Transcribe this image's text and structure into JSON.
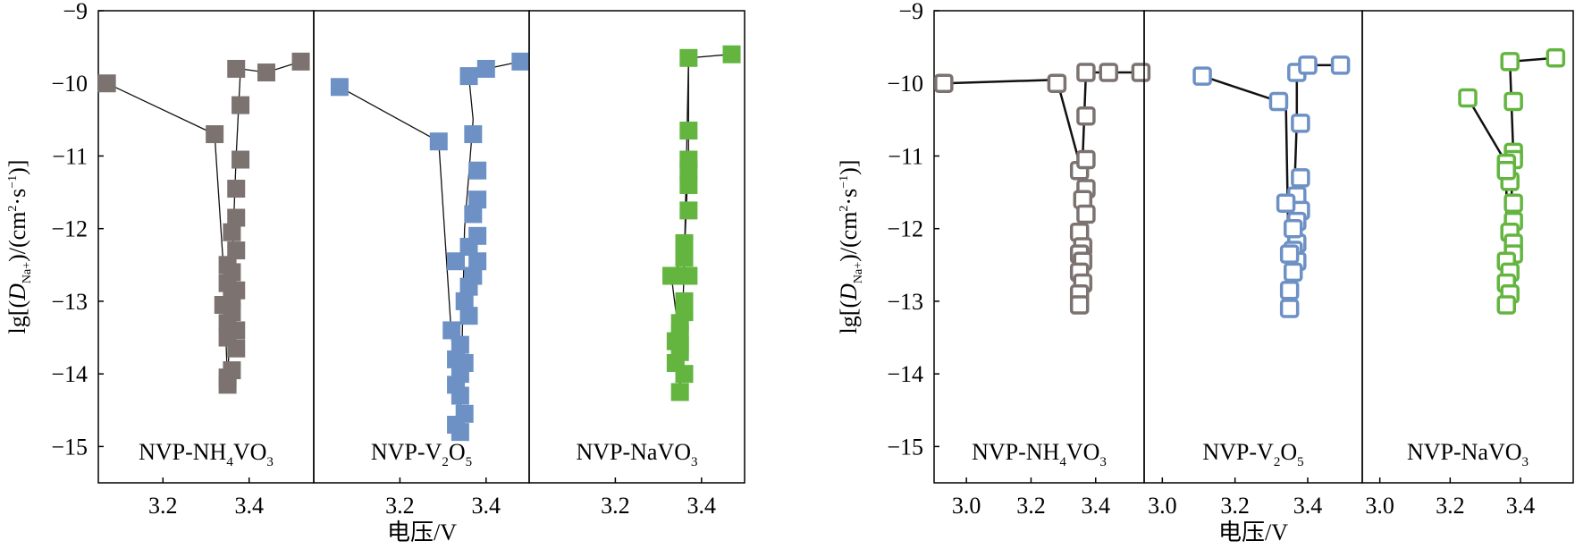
{
  "chart_data": [
    {
      "type": "scatter",
      "marker_style": "filled-square",
      "ylabel": "lg[(D_Na+)/(cm²·s⁻¹)]",
      "xlabel": "电压/V",
      "ylim": [
        -15.5,
        -9
      ],
      "yticks": [
        -9,
        -10,
        -11,
        -12,
        -13,
        -14,
        -15
      ],
      "panels": [
        {
          "label": "NVP-NH4VO3",
          "label_text": "NVP-NH",
          "label_sub1": "4",
          "label_mid": "VO",
          "label_sub2": "3",
          "color": "#7c7270",
          "xlim": [
            3.05,
            3.55
          ],
          "xticks": [
            3.2,
            3.4
          ],
          "x": [
            3.07,
            3.32,
            3.37,
            3.38,
            3.38,
            3.37,
            3.37,
            3.36,
            3.37,
            3.35,
            3.36,
            3.35,
            3.37,
            3.36,
            3.34,
            3.36,
            3.35,
            3.37,
            3.35,
            3.37,
            3.36,
            3.35,
            3.35,
            3.44,
            3.52
          ],
          "y": [
            -10.0,
            -10.7,
            -9.8,
            -10.3,
            -11.05,
            -11.45,
            -11.85,
            -12.05,
            -12.3,
            -12.5,
            -12.6,
            -12.75,
            -12.85,
            -12.95,
            -13.05,
            -13.15,
            -13.3,
            -13.4,
            -13.5,
            -13.65,
            -13.95,
            -14.05,
            -14.15,
            -9.85,
            -9.7
          ],
          "line": [
            [
              3.07,
              -10.0
            ],
            [
              3.32,
              -10.7
            ],
            [
              3.34,
              -12.5
            ],
            [
              3.35,
              -14.15
            ],
            [
              3.37,
              -11.0
            ],
            [
              3.38,
              -9.8
            ],
            [
              3.44,
              -9.85
            ],
            [
              3.52,
              -9.7
            ]
          ]
        },
        {
          "label": "NVP-V2O5",
          "label_text": "NVP-V",
          "label_sub1": "2",
          "label_mid": "O",
          "label_sub2": "5",
          "color": "#6d91c5",
          "xlim": [
            3.0,
            3.5
          ],
          "xticks": [
            3.2,
            3.4
          ],
          "x": [
            3.06,
            3.29,
            3.36,
            3.37,
            3.38,
            3.38,
            3.37,
            3.38,
            3.36,
            3.38,
            3.37,
            3.36,
            3.33,
            3.35,
            3.36,
            3.32,
            3.34,
            3.33,
            3.35,
            3.34,
            3.33,
            3.34,
            3.35,
            3.33,
            3.34,
            3.4,
            3.48
          ],
          "y": [
            -10.05,
            -10.8,
            -9.9,
            -10.7,
            -11.2,
            -11.6,
            -11.8,
            -12.1,
            -12.25,
            -12.45,
            -12.65,
            -12.8,
            -12.45,
            -13.0,
            -13.2,
            -13.4,
            -13.6,
            -13.8,
            -13.85,
            -14.0,
            -14.15,
            -14.3,
            -14.55,
            -14.7,
            -14.8,
            -9.8,
            -9.7
          ],
          "line": [
            [
              3.06,
              -10.05
            ],
            [
              3.29,
              -10.8
            ],
            [
              3.32,
              -13.5
            ],
            [
              3.34,
              -14.8
            ],
            [
              3.35,
              -12.0
            ],
            [
              3.37,
              -10.5
            ],
            [
              3.36,
              -9.9
            ],
            [
              3.4,
              -9.8
            ],
            [
              3.48,
              -9.7
            ]
          ]
        },
        {
          "label": "NVP-NaVO3",
          "label_text": "NVP-NaVO",
          "label_sub1": "",
          "label_mid": "",
          "label_sub2": "3",
          "color": "#63b540",
          "xlim": [
            3.0,
            3.5
          ],
          "xticks": [
            3.2,
            3.4
          ],
          "x": [
            3.37,
            3.37,
            3.37,
            3.37,
            3.37,
            3.37,
            3.36,
            3.36,
            3.33,
            3.37,
            3.36,
            3.36,
            3.35,
            3.35,
            3.34,
            3.35,
            3.34,
            3.36,
            3.35,
            3.35,
            3.47
          ],
          "y": [
            -9.65,
            -10.65,
            -11.05,
            -11.2,
            -11.4,
            -11.75,
            -12.2,
            -12.4,
            -12.65,
            -12.65,
            -13.0,
            -13.15,
            -13.3,
            -13.45,
            -13.55,
            -13.7,
            -13.85,
            -14.0,
            -13.6,
            -14.25,
            -9.6
          ],
          "line": [
            [
              3.37,
              -9.65
            ],
            [
              3.37,
              -11.0
            ],
            [
              3.36,
              -12.4
            ],
            [
              3.33,
              -12.65
            ],
            [
              3.35,
              -13.6
            ],
            [
              3.35,
              -14.25
            ],
            [
              3.36,
              -12.5
            ],
            [
              3.37,
              -9.65
            ],
            [
              3.47,
              -9.6
            ]
          ]
        }
      ]
    },
    {
      "type": "scatter",
      "marker_style": "outlined-square",
      "ylabel": "lg[(D_Na+)/(cm²·s⁻¹)]",
      "xlabel": "电压/V",
      "ylim": [
        -15.5,
        -9
      ],
      "yticks": [
        -9,
        -10,
        -11,
        -12,
        -13,
        -14,
        -15
      ],
      "panels": [
        {
          "label": "NVP-NH4VO3",
          "label_text": "NVP-NH",
          "label_sub1": "4",
          "label_mid": "VO",
          "label_sub2": "3",
          "color": "#7c7270",
          "xlim": [
            2.9,
            3.55
          ],
          "xticks": [
            3.0,
            3.2,
            3.4
          ],
          "x": [
            2.93,
            3.28,
            3.37,
            3.37,
            3.35,
            3.37,
            3.37,
            3.36,
            3.37,
            3.35,
            3.36,
            3.35,
            3.36,
            3.35,
            3.36,
            3.35,
            3.35,
            3.44,
            3.54
          ],
          "y": [
            -10.0,
            -10.0,
            -9.85,
            -10.45,
            -11.2,
            -11.05,
            -11.45,
            -11.6,
            -11.8,
            -12.05,
            -12.25,
            -12.35,
            -12.45,
            -12.6,
            -12.75,
            -12.9,
            -13.05,
            -9.85,
            -9.85
          ],
          "line": [
            [
              2.93,
              -10.0
            ],
            [
              3.28,
              -9.95
            ],
            [
              3.35,
              -11.1
            ],
            [
              3.36,
              -11.0
            ],
            [
              3.37,
              -9.85
            ],
            [
              3.44,
              -9.85
            ],
            [
              3.54,
              -9.85
            ]
          ]
        },
        {
          "label": "NVP-V2O5",
          "label_text": "NVP-V",
          "label_sub1": "2",
          "label_mid": "O",
          "label_sub2": "5",
          "color": "#6d91c5",
          "xlim": [
            2.95,
            3.55
          ],
          "xticks": [
            3.0,
            3.2,
            3.4
          ],
          "x": [
            3.11,
            3.32,
            3.37,
            3.38,
            3.38,
            3.37,
            3.38,
            3.34,
            3.37,
            3.37,
            3.36,
            3.37,
            3.35,
            3.36,
            3.35,
            3.35,
            3.4,
            3.49,
            3.36
          ],
          "y": [
            -9.9,
            -10.25,
            -9.85,
            -10.55,
            -11.3,
            -11.55,
            -11.75,
            -11.65,
            -11.9,
            -12.2,
            -12.3,
            -12.45,
            -12.35,
            -12.6,
            -12.85,
            -13.1,
            -9.75,
            -9.75,
            -12.0
          ],
          "line": [
            [
              3.11,
              -9.9
            ],
            [
              3.32,
              -10.25
            ],
            [
              3.34,
              -10.3
            ],
            [
              3.35,
              -13.1
            ],
            [
              3.36,
              -12.0
            ],
            [
              3.37,
              -10.5
            ],
            [
              3.37,
              -9.85
            ],
            [
              3.4,
              -9.75
            ],
            [
              3.49,
              -9.75
            ]
          ]
        },
        {
          "label": "NVP-NaVO3",
          "label_text": "NVP-NaVO",
          "label_sub1": "",
          "label_mid": "",
          "label_sub2": "3",
          "color": "#63b540",
          "xlim": [
            2.95,
            3.55
          ],
          "xticks": [
            3.0,
            3.2,
            3.4
          ],
          "x": [
            3.25,
            3.37,
            3.38,
            3.38,
            3.38,
            3.37,
            3.38,
            3.38,
            3.37,
            3.38,
            3.38,
            3.36,
            3.37,
            3.36,
            3.37,
            3.36,
            3.36,
            3.36,
            3.5
          ],
          "y": [
            -10.2,
            -9.7,
            -10.25,
            -10.95,
            -11.05,
            -11.35,
            -11.65,
            -11.9,
            -12.05,
            -12.2,
            -12.35,
            -12.45,
            -12.6,
            -12.75,
            -12.9,
            -13.05,
            -11.1,
            -11.2,
            -9.65
          ],
          "line": [
            [
              3.25,
              -10.2
            ],
            [
              3.36,
              -11.1
            ],
            [
              3.36,
              -13.05
            ],
            [
              3.38,
              -11.0
            ],
            [
              3.37,
              -9.7
            ],
            [
              3.5,
              -9.65
            ]
          ]
        }
      ]
    }
  ]
}
